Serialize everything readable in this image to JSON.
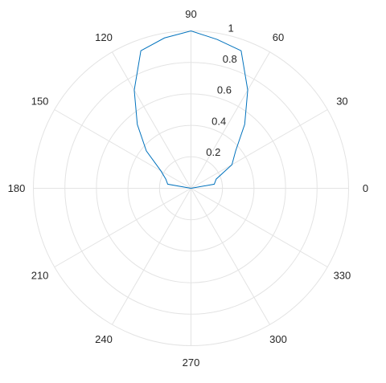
{
  "chart_data": {
    "type": "polar-line",
    "title": "",
    "theta_unit": "degrees",
    "theta_ticks": [
      "0",
      "30",
      "60",
      "90",
      "120",
      "150",
      "180",
      "210",
      "240",
      "270",
      "300",
      "330"
    ],
    "r_ticks": [
      "0.2",
      "0.4",
      "0.6",
      "0.8",
      "1"
    ],
    "rlim": [
      0,
      1
    ],
    "grid": true,
    "series": [
      {
        "color": "#0072bd",
        "theta": [
          0,
          10,
          20,
          30,
          40,
          50,
          60,
          70,
          80,
          90,
          100,
          110,
          120,
          130,
          140,
          150,
          160,
          170,
          180
        ],
        "r": [
          0.0,
          0.15,
          0.17,
          0.3,
          0.37,
          0.53,
          0.72,
          0.93,
          0.96,
          1.0,
          0.97,
          0.93,
          0.72,
          0.53,
          0.37,
          0.22,
          0.17,
          0.15,
          0.0
        ]
      }
    ]
  }
}
